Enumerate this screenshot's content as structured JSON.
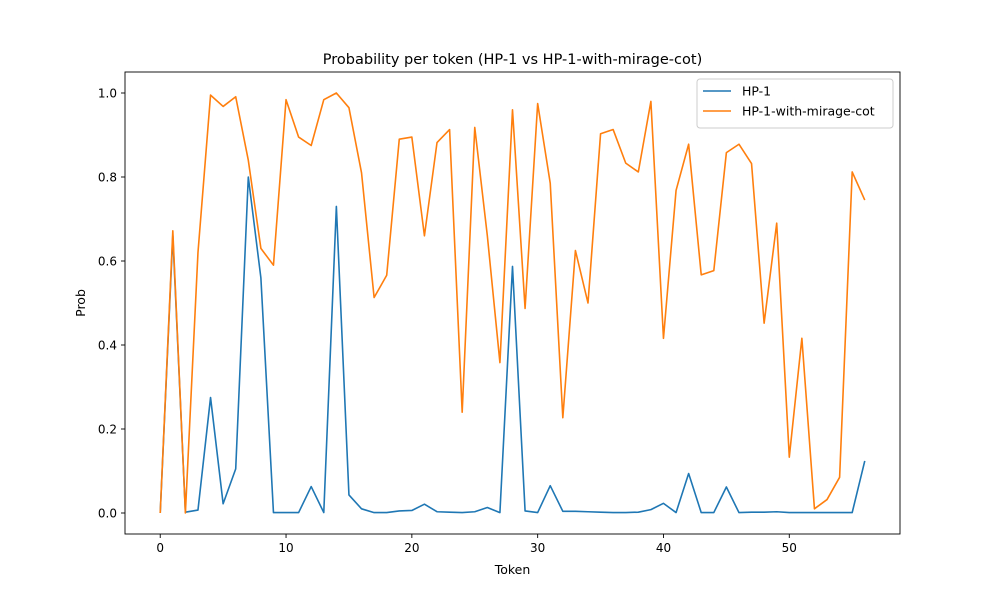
{
  "chart_data": {
    "type": "line",
    "title": "Probability per token (HP-1 vs HP-1-with-mirage-cot)",
    "xlabel": "Token",
    "ylabel": "Prob",
    "xlim": [
      -2.8,
      58.8
    ],
    "ylim": [
      -0.05,
      1.05
    ],
    "xticks": [
      0,
      10,
      20,
      30,
      40,
      50
    ],
    "yticks": [
      0.0,
      0.2,
      0.4,
      0.6,
      0.8,
      1.0
    ],
    "xtick_labels": [
      "0",
      "10",
      "20",
      "30",
      "40",
      "50"
    ],
    "ytick_labels": [
      "0.0",
      "0.2",
      "0.4",
      "0.6",
      "0.8",
      "1.0"
    ],
    "grid": false,
    "legend_position": "top-right",
    "series": [
      {
        "name": "HP-1",
        "color": "#1f77b4",
        "x": [
          0,
          1,
          2,
          3,
          4,
          5,
          6,
          7,
          8,
          9,
          10,
          11,
          12,
          13,
          14,
          15,
          16,
          17,
          18,
          19,
          20,
          21,
          22,
          23,
          24,
          25,
          26,
          27,
          28,
          29,
          30,
          31,
          32,
          33,
          34,
          35,
          36,
          37,
          38,
          39,
          40,
          41,
          42,
          43,
          44,
          45,
          46,
          47,
          48,
          49,
          50,
          51,
          52,
          53,
          54,
          55,
          56
        ],
        "values": [
          0.0,
          0.66,
          0.002,
          0.007,
          0.275,
          0.022,
          0.105,
          0.8,
          0.56,
          0.001,
          0.001,
          0.001,
          0.063,
          0.001,
          0.73,
          0.043,
          0.01,
          0.001,
          0.001,
          0.005,
          0.006,
          0.021,
          0.003,
          0.002,
          0.001,
          0.003,
          0.013,
          0.001,
          0.587,
          0.005,
          0.001,
          0.065,
          0.004,
          0.004,
          0.003,
          0.002,
          0.001,
          0.001,
          0.002,
          0.008,
          0.023,
          0.001,
          0.094,
          0.001,
          0.001,
          0.062,
          0.001,
          0.002,
          0.002,
          0.003,
          0.001,
          0.001,
          0.001,
          0.001,
          0.001,
          0.001,
          0.124
        ]
      },
      {
        "name": "HP-1-with-mirage-cot",
        "color": "#ff7f0e",
        "x": [
          0,
          1,
          2,
          3,
          4,
          5,
          6,
          7,
          8,
          9,
          10,
          11,
          12,
          13,
          14,
          15,
          16,
          17,
          18,
          19,
          20,
          21,
          22,
          23,
          24,
          25,
          26,
          27,
          28,
          29,
          30,
          31,
          32,
          33,
          34,
          35,
          36,
          37,
          38,
          39,
          40,
          41,
          42,
          43,
          44,
          45,
          46,
          47,
          48,
          49,
          50,
          51,
          52,
          53,
          54,
          55,
          56
        ],
        "values": [
          0.0,
          0.672,
          0.0,
          0.62,
          0.995,
          0.968,
          0.991,
          0.84,
          0.63,
          0.59,
          0.984,
          0.895,
          0.875,
          0.984,
          1.0,
          0.965,
          0.81,
          0.513,
          0.566,
          0.89,
          0.895,
          0.66,
          0.882,
          0.913,
          0.24,
          0.918,
          0.66,
          0.358,
          0.96,
          0.487,
          0.975,
          0.785,
          0.227,
          0.625,
          0.5,
          0.903,
          0.913,
          0.833,
          0.812,
          0.98,
          0.416,
          0.768,
          0.878,
          0.567,
          0.577,
          0.858,
          0.878,
          0.832,
          0.452,
          0.69,
          0.133,
          0.416,
          0.01,
          0.032,
          0.085,
          0.812,
          0.745
        ]
      }
    ]
  }
}
